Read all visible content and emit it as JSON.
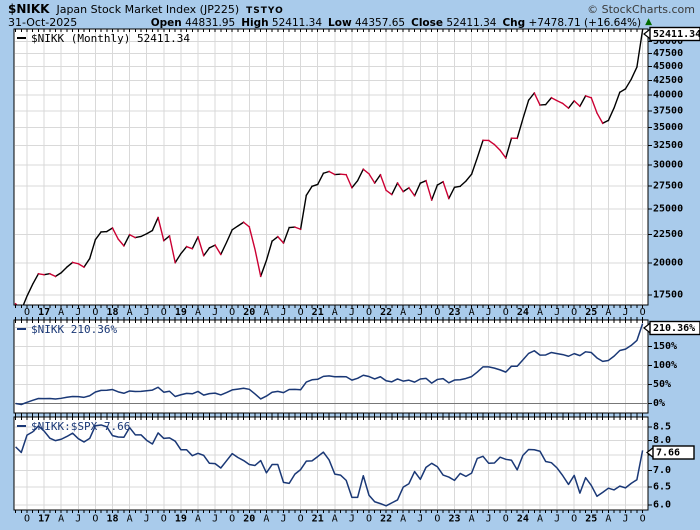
{
  "header": {
    "symbol": "$NIKK",
    "name": "Japan Stock Market Index (JP225)",
    "exchange": "TSTYO",
    "copyright": "© StockCharts.com",
    "date": "31-Oct-2025",
    "quote": [
      {
        "label": "Open",
        "value": "44831.95"
      },
      {
        "label": "High",
        "value": "52411.34"
      },
      {
        "label": "Low",
        "value": "44357.65"
      },
      {
        "label": "Close",
        "value": "52411.34"
      },
      {
        "label": "Chg",
        "value": "+7478.71 (+16.64%)"
      }
    ],
    "chg_arrow": "▲"
  },
  "panels": {
    "price": {
      "legend": "$NIKK (Monthly) 52411.34",
      "value_box": "52411.34"
    },
    "perf": {
      "legend": "$NIKK 210.36%",
      "value_box": "210.36%"
    },
    "ratio": {
      "legend": "$NIKK:$SPX 7.66",
      "value_box": "7.66"
    }
  },
  "colors": {
    "background": "#A9CBEB",
    "panel_bg": "#FFFFFF",
    "border": "#000000",
    "grid": "#D9D9D9",
    "zero_line": "#777777",
    "price_up": "#000000",
    "price_down": "#CC0033",
    "indicator_line": "#1A3876",
    "legend_price": "#000000",
    "legend_indicator": "#1A3876",
    "arrow_green": "#006B00"
  },
  "chart_data": [
    {
      "type": "line",
      "panel": "price",
      "title": "$NIKK (Monthly)",
      "timeframe": "monthly",
      "x_start": "Aug-2016",
      "x_end": "Oct-2025",
      "x_tick_labels": [
        "O",
        "17",
        "A",
        "J",
        "O",
        "18",
        "A",
        "J",
        "O",
        "19",
        "A",
        "J",
        "O",
        "20",
        "A",
        "J",
        "O",
        "21",
        "A",
        "J",
        "O",
        "22",
        "A",
        "J",
        "O",
        "23",
        "A",
        "J",
        "O",
        "24",
        "A",
        "J",
        "O",
        "25",
        "A",
        "J",
        "O"
      ],
      "scale": "log",
      "ylim": [
        16800,
        52600
      ],
      "ytick_values": [
        50000,
        47500,
        45000,
        42500,
        40000,
        37500,
        35000,
        32500,
        30000,
        27500,
        25000,
        22500,
        20000,
        17500
      ],
      "ytick_labels": [
        "50000",
        "47500",
        "45000",
        "42500",
        "40000",
        "37500",
        "35000",
        "32500",
        "30000",
        "27500",
        "25000",
        "22500",
        "20000",
        "17500"
      ],
      "last_value": 52411.34,
      "values": [
        16887.4,
        16450,
        17425,
        18308,
        19114,
        19041,
        19119,
        18909,
        19197,
        19651,
        20033,
        19925,
        19646,
        20356,
        22012,
        22725,
        22765,
        23098,
        22068,
        21454,
        22468,
        22202,
        22305,
        22554,
        22865,
        24120,
        21920,
        22351,
        20015,
        20773,
        21385,
        21206,
        22259,
        20601,
        21276,
        21522,
        20704,
        21756,
        22927,
        23294,
        23657,
        23205,
        21143,
        18917,
        20194,
        21878,
        22288,
        21710,
        23140,
        23185,
        22977,
        26434,
        27444,
        27663,
        28966,
        29179,
        28813,
        28860,
        28792,
        27284,
        28090,
        29453,
        28893,
        27822,
        28792,
        27002,
        26527,
        27821,
        26848,
        27280,
        26393,
        27802,
        28092,
        25937,
        27587,
        27969,
        26095,
        27327,
        27446,
        28041,
        28856,
        30888,
        33189,
        33172,
        32619,
        31858,
        30859,
        33487,
        33464,
        36287,
        39166,
        40369,
        38406,
        38488,
        39583,
        39102,
        38648,
        37920,
        39081,
        38208,
        39895,
        39572,
        37156,
        35618,
        36045,
        37965,
        40487,
        41070,
        42718,
        44932,
        52411.34
      ]
    },
    {
      "type": "line",
      "panel": "perf",
      "title": "$NIKK percent change",
      "scale": "linear",
      "ylim": [
        -25,
        220
      ],
      "ytick_values": [
        200,
        150,
        100,
        50,
        0
      ],
      "ytick_labels": [
        "200%",
        "150%",
        "100%",
        "50%",
        "0%"
      ],
      "zero_line": true,
      "last_value": 210.36,
      "values": [
        0,
        -2.6,
        3.2,
        8.4,
        13.2,
        12.8,
        13.2,
        12,
        13.7,
        16.4,
        18.6,
        18,
        16.3,
        20.5,
        30.3,
        34.6,
        34.8,
        36.8,
        30.7,
        27,
        33,
        31.5,
        32.1,
        33.6,
        35.4,
        42.8,
        29.8,
        32.3,
        18.5,
        23,
        26.6,
        25.6,
        31.8,
        22,
        26,
        27.4,
        22.6,
        28.8,
        35.8,
        37.9,
        40.1,
        37.4,
        25.2,
        12,
        19.6,
        29.6,
        32,
        28.6,
        37,
        37.3,
        36.1,
        56.5,
        62.5,
        63.8,
        71.5,
        72.8,
        70.6,
        70.9,
        70.5,
        61.6,
        66.3,
        74.4,
        71.1,
        64.7,
        70.5,
        59.9,
        57.1,
        64.7,
        59,
        61.5,
        56.3,
        64.6,
        66.3,
        53.6,
        63.4,
        65.6,
        54.5,
        61.8,
        62.5,
        66,
        70.9,
        82.9,
        96.5,
        96.4,
        93.2,
        88.6,
        82.7,
        98.3,
        98.2,
        114.9,
        131.9,
        139,
        127.4,
        127.9,
        134.4,
        131.5,
        128.9,
        124.5,
        131.4,
        126.2,
        136.2,
        134.3,
        120,
        110.9,
        113.4,
        124.8,
        139.7,
        143.2,
        153,
        166.1,
        210.36
      ]
    },
    {
      "type": "line",
      "panel": "ratio",
      "title": "$NIKK:$SPX",
      "scale": "log",
      "ylim": [
        5.87,
        8.89
      ],
      "ytick_values": [
        8.5,
        8.0,
        7.5,
        7.0,
        6.5,
        6.0
      ],
      "ytick_labels": [
        "8.5",
        "8.0",
        "7.5",
        "7.0",
        "6.5",
        "6.0"
      ],
      "last_value": 7.66,
      "values": [
        7.78,
        7.59,
        8.2,
        8.32,
        8.54,
        8.35,
        8.09,
        8,
        8.05,
        8.15,
        8.27,
        8.07,
        7.95,
        8.08,
        8.55,
        8.58,
        8.51,
        8.18,
        8.13,
        8.12,
        8.48,
        8.21,
        8.21,
        8.01,
        7.88,
        8.28,
        8.08,
        8.1,
        7.98,
        7.68,
        7.68,
        7.48,
        7.56,
        7.49,
        7.23,
        7.22,
        7.08,
        7.31,
        7.55,
        7.42,
        7.32,
        7.19,
        7.16,
        7.32,
        6.93,
        7.19,
        7.19,
        6.64,
        6.61,
        6.89,
        7.03,
        7.3,
        7.31,
        7.45,
        7.6,
        7.34,
        6.89,
        6.86,
        6.7,
        6.21,
        6.21,
        6.84,
        6.27,
        6.09,
        6.04,
        5.98,
        6.06,
        6.14,
        6.5,
        6.6,
        6.97,
        6.73,
        7.1,
        7.23,
        7.12,
        6.86,
        6.8,
        6.7,
        6.91,
        6.82,
        6.92,
        7.39,
        7.46,
        7.23,
        7.24,
        7.43,
        7.36,
        7.33,
        7.02,
        7.49,
        7.69,
        7.68,
        7.63,
        7.29,
        7.25,
        7.08,
        6.84,
        6.58,
        6.85,
        6.33,
        6.78,
        6.55,
        6.24,
        6.35,
        6.47,
        6.42,
        6.53,
        6.48,
        6.61,
        6.72,
        7.66
      ]
    }
  ]
}
